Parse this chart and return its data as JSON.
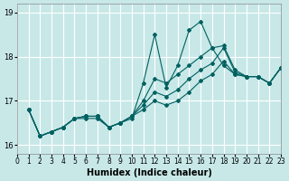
{
  "xlabel": "Humidex (Indice chaleur)",
  "ylabel": "",
  "background_color": "#c8e8e8",
  "grid_color": "#ffffff",
  "line_color": "#006060",
  "xlim": [
    0,
    23
  ],
  "ylim": [
    15.8,
    19.2
  ],
  "yticks": [
    16,
    17,
    18,
    19
  ],
  "xticks": [
    0,
    1,
    2,
    3,
    4,
    5,
    6,
    7,
    8,
    9,
    10,
    11,
    12,
    13,
    14,
    15,
    16,
    17,
    18,
    19,
    20,
    21,
    22,
    23
  ],
  "series": [
    [
      16.8,
      16.2,
      16.3,
      16.4,
      16.6,
      16.6,
      16.6,
      16.4,
      16.5,
      16.6,
      17.4,
      18.5,
      17.3,
      17.8,
      18.6,
      18.8,
      18.2,
      17.8,
      17.6,
      17.55,
      17.55,
      17.4,
      17.75
    ],
    [
      16.8,
      16.2,
      16.3,
      16.4,
      16.6,
      16.65,
      16.65,
      16.4,
      16.5,
      16.65,
      17.0,
      17.5,
      17.4,
      17.6,
      17.8,
      18.0,
      18.2,
      18.25,
      17.7,
      17.55,
      17.55,
      17.4,
      17.75
    ],
    [
      16.8,
      16.2,
      16.3,
      16.4,
      16.6,
      16.65,
      16.65,
      16.4,
      16.5,
      16.65,
      16.9,
      17.2,
      17.1,
      17.25,
      17.5,
      17.7,
      17.85,
      18.2,
      17.65,
      17.55,
      17.55,
      17.4,
      17.75
    ],
    [
      16.8,
      16.2,
      16.3,
      16.4,
      16.6,
      16.65,
      16.65,
      16.4,
      16.5,
      16.65,
      16.8,
      17.0,
      16.9,
      17.0,
      17.2,
      17.45,
      17.6,
      17.9,
      17.6,
      17.55,
      17.55,
      17.4,
      17.75
    ]
  ]
}
